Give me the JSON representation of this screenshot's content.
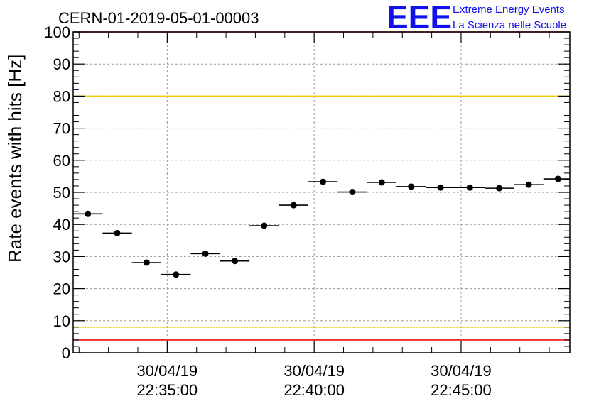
{
  "chart_data": {
    "type": "scatter",
    "title": "CERN-01-2019-05-01-00003",
    "ylabel": "Rate events with hits [Hz]",
    "xlabel": "",
    "ylim": [
      0,
      100
    ],
    "yticks": [
      0,
      10,
      20,
      30,
      40,
      50,
      60,
      70,
      80,
      90,
      100
    ],
    "xlim_minutes": [
      31.8,
      48.7
    ],
    "xticks": [
      {
        "minute": 35,
        "date": "30/04/19",
        "time": "22:35:00"
      },
      {
        "minute": 40,
        "date": "30/04/19",
        "time": "22:40:00"
      },
      {
        "minute": 45,
        "date": "30/04/19",
        "time": "22:45:00"
      }
    ],
    "bin_width_minutes": 1,
    "series": [
      {
        "x_minutes": [
          32.3,
          33.3,
          34.3,
          35.3,
          36.3,
          37.3,
          38.3,
          39.3,
          40.3,
          41.3,
          42.3,
          43.3,
          44.3,
          45.3,
          46.3,
          47.3,
          48.3
        ],
        "values": [
          43.3,
          37.3,
          28.1,
          24.4,
          30.9,
          28.6,
          39.6,
          46.0,
          53.3,
          50.1,
          53.1,
          51.8,
          51.5,
          51.5,
          51.3,
          52.4,
          54.2
        ]
      }
    ],
    "reference_lines": [
      {
        "value": 100,
        "color": "#ee1111"
      },
      {
        "value": 80,
        "color": "#eecc00"
      },
      {
        "value": 8,
        "color": "#eecc00"
      },
      {
        "value": 4,
        "color": "#ee1111"
      }
    ],
    "grid": true,
    "legend": "none"
  },
  "logo": {
    "mark": "EEE",
    "line1": "Extreme Energy Events",
    "line2": "La Scienza nelle Scuole"
  },
  "colors": {
    "logo": "#1111ee",
    "marker": "#000000",
    "grid": "#9a9a9a"
  }
}
